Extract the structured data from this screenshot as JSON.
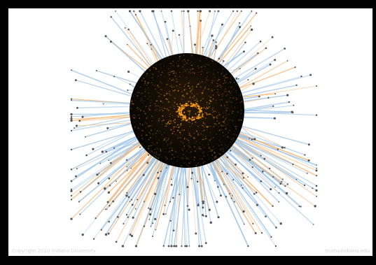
{
  "footer": {
    "copyright": "Copyright 2010 Indiana University",
    "site": "truthy.indiana.edu"
  },
  "visual": {
    "type": "network-graph",
    "core_color": "#0b0906",
    "core_node_color": "#e08a16",
    "edge_colors": [
      "#9cc3e6",
      "#f5b878"
    ],
    "leaf_node_color": "#555555",
    "background": "#ffffff",
    "frame_color": "#000000"
  }
}
